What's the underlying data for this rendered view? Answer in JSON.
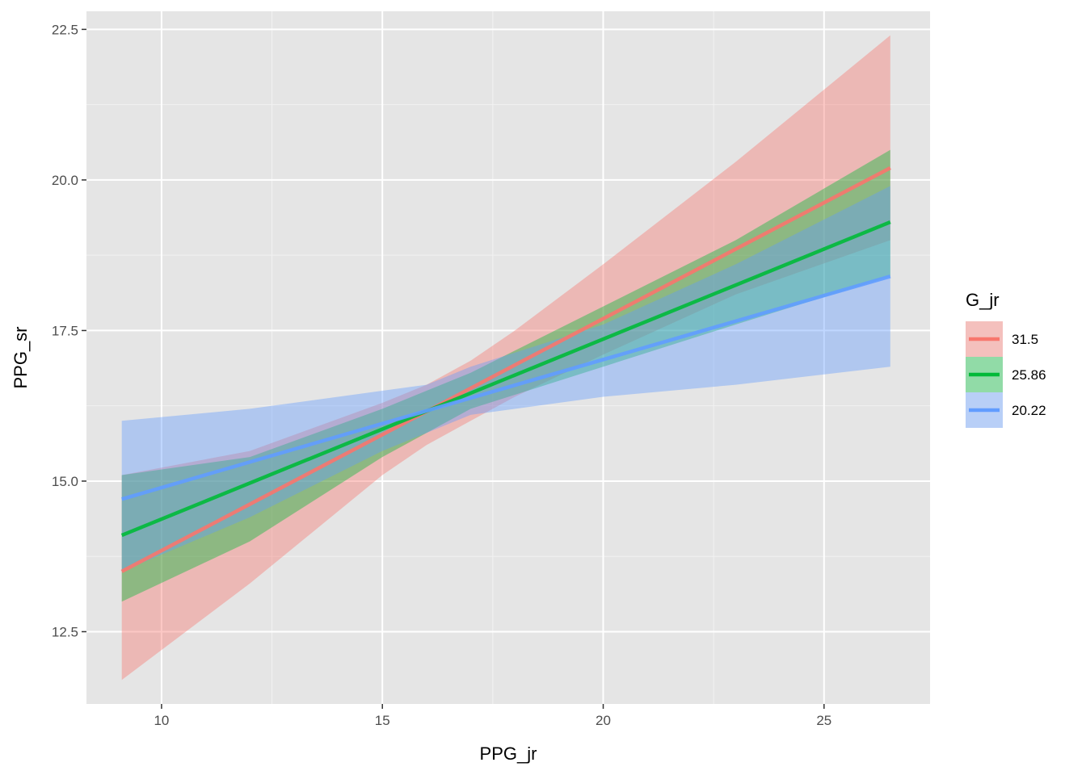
{
  "chart_data": {
    "type": "line",
    "title": "",
    "xlabel": "PPG_jr",
    "ylabel": "PPG_sr",
    "xlim": [
      8.3,
      27.4
    ],
    "ylim": [
      11.3,
      22.8
    ],
    "x_ticks": [
      10,
      15,
      20,
      25
    ],
    "x_tick_labels": [
      "10",
      "15",
      "20",
      "25"
    ],
    "x_minor_ticks": [
      12.5,
      17.5,
      22.5
    ],
    "y_ticks": [
      12.5,
      15.0,
      17.5,
      20.0,
      22.5
    ],
    "y_tick_labels": [
      "12.5",
      "15.0",
      "17.5",
      "20.0",
      "22.5"
    ],
    "y_minor_ticks": [
      13.75,
      16.25,
      18.75,
      21.25
    ],
    "grid": true,
    "background": "#e5e5e5",
    "legend": {
      "title": "G_jr",
      "placement": "right"
    },
    "series": [
      {
        "name": "31.5",
        "color": "#f8766d",
        "x": [
          9.1,
          26.5
        ],
        "y": [
          13.5,
          20.2
        ],
        "ribbon": {
          "x": [
            9.1,
            12.0,
            15.0,
            16.0,
            17.0,
            18.0,
            20.0,
            23.0,
            26.5
          ],
          "lower": [
            11.7,
            13.3,
            15.1,
            15.6,
            16.0,
            16.4,
            17.1,
            18.1,
            19.0
          ],
          "upper": [
            15.1,
            15.5,
            16.3,
            16.6,
            17.0,
            17.5,
            18.6,
            20.3,
            22.4
          ]
        }
      },
      {
        "name": "25.86",
        "color": "#00ba38",
        "x": [
          9.1,
          26.5
        ],
        "y": [
          14.1,
          19.3
        ],
        "ribbon": {
          "x": [
            9.1,
            12.0,
            15.0,
            16.0,
            17.0,
            20.0,
            23.0,
            26.5
          ],
          "lower": [
            13.0,
            14.0,
            15.4,
            15.8,
            16.2,
            16.9,
            17.6,
            18.4
          ],
          "upper": [
            15.1,
            15.4,
            16.2,
            16.5,
            16.8,
            17.9,
            19.0,
            20.5
          ]
        }
      },
      {
        "name": "20.22",
        "color": "#619cff",
        "x": [
          9.1,
          26.5
        ],
        "y": [
          14.7,
          18.4
        ],
        "ribbon": {
          "x": [
            9.1,
            12.0,
            15.0,
            16.0,
            17.0,
            20.0,
            23.0,
            26.5
          ],
          "lower": [
            13.5,
            14.4,
            15.5,
            15.8,
            16.1,
            16.4,
            16.6,
            16.9
          ],
          "upper": [
            16.0,
            16.2,
            16.5,
            16.6,
            16.9,
            17.6,
            18.6,
            19.9
          ]
        }
      }
    ]
  }
}
